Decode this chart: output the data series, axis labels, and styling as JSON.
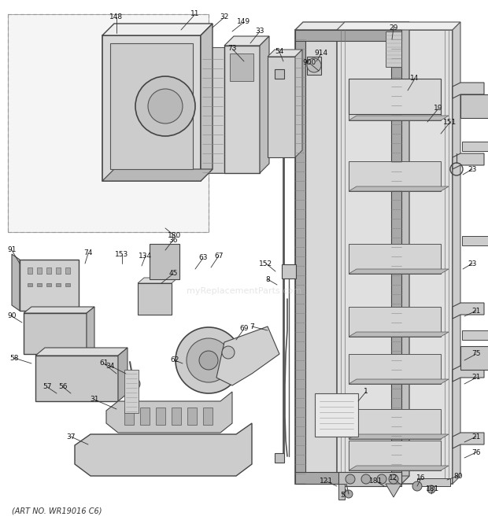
{
  "bg_color": "#ffffff",
  "line_color": "#333333",
  "art_no": "(ART NO. WR19016 C6)",
  "watermark": "myReplacementParts.com",
  "figsize": [
    6.2,
    6.61
  ],
  "dpi": 100,
  "lw_main": 1.0,
  "lw_thin": 0.6,
  "label_fs": 6.5,
  "art_fs": 7.0,
  "gray_fill": "#c8c8c8",
  "gray_dark": "#999999",
  "gray_light": "#e8e8e8",
  "gray_mid": "#bbbbbb"
}
